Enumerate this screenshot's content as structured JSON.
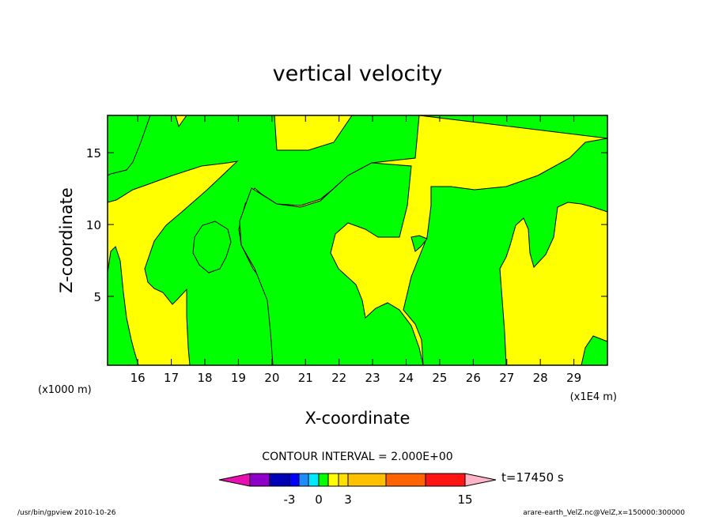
{
  "chart_data": {
    "type": "heatmap",
    "title": "vertical velocity",
    "xlabel": "X-coordinate",
    "ylabel": "Z-coordinate",
    "x_unit": "(x1E4 m)",
    "y_unit": "(x1000 m)",
    "xlim": [
      15.1,
      30.0
    ],
    "ylim": [
      0.2,
      17.6
    ],
    "x_ticks": [
      "16",
      "17",
      "18",
      "19",
      "20",
      "21",
      "22",
      "23",
      "24",
      "25",
      "26",
      "27",
      "28",
      "29"
    ],
    "y_ticks": [
      "5",
      "10",
      "15"
    ],
    "contour_interval_text": "CONTOUR INTERVAL = 2.000E+00",
    "time_text": "t=17450 s",
    "colorbar": {
      "colors": [
        "#e810b0",
        "#8c00c8",
        "#0000b4",
        "#0000ff",
        "#1e8cff",
        "#00e8ff",
        "#00ff00",
        "#ffff00",
        "#ffe000",
        "#ffc000",
        "#ff6400",
        "#ff1414",
        "#ff7878",
        "#ffb4c8"
      ],
      "labels": [
        "-3",
        "0",
        "3",
        "15"
      ]
    },
    "fill_colors": {
      "low": "#00ff00",
      "high": "#ffff00"
    }
  },
  "footer": {
    "left": "/usr/bin/gpview   2010-10-26",
    "right": "arare-earth_VelZ.nc@VelZ,x=150000:300000"
  }
}
